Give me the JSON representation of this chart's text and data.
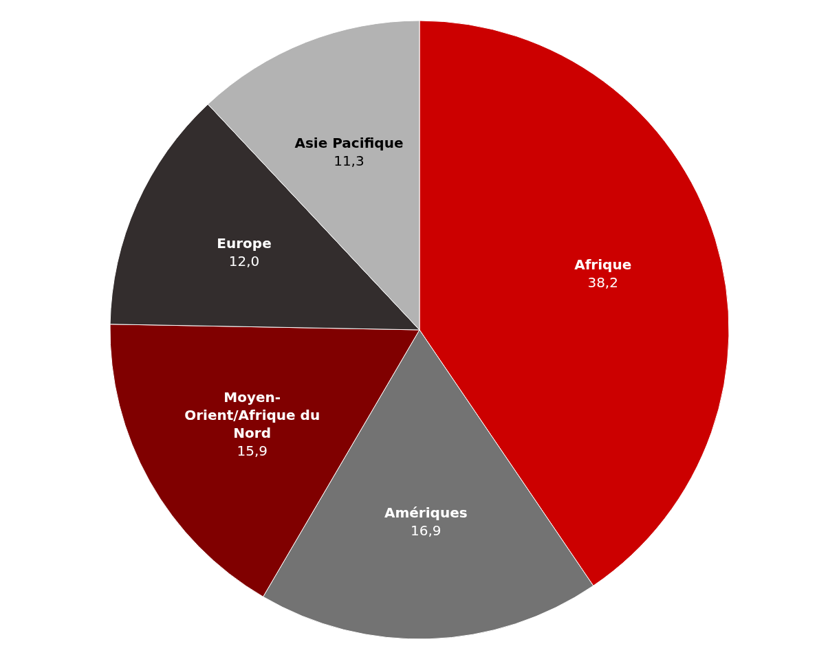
{
  "chart_data": {
    "type": "pie",
    "categories": [
      "Afrique",
      "Amériques",
      "Moyen-Orient/Afrique du Nord",
      "Europe",
      "Asie Pacifique"
    ],
    "values": [
      38.2,
      16.9,
      15.9,
      12.0,
      11.3
    ],
    "value_labels": [
      "38,2",
      "16,9",
      "15,9",
      "12,0",
      "11,3"
    ],
    "colors": [
      "#cc0000",
      "#737373",
      "#800000",
      "#332d2d",
      "#b3b3b3"
    ]
  }
}
